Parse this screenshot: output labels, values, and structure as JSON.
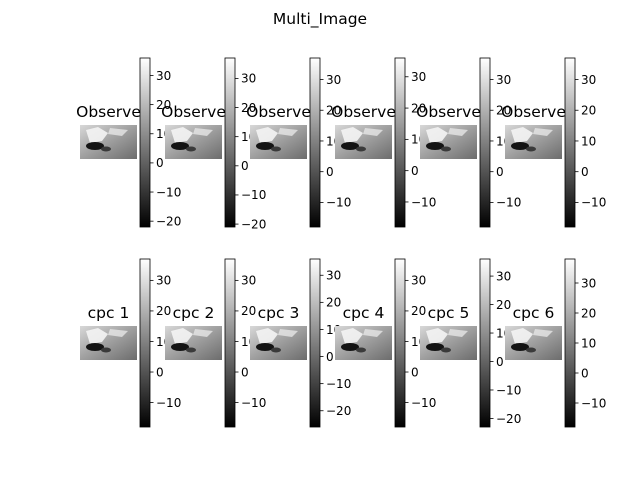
{
  "figure": {
    "title": "Multi_Image"
  },
  "chart_data": {
    "type": "heatmap",
    "colormap": "gray",
    "rows": [
      {
        "panels": [
          {
            "title": "Observe",
            "colorbar": {
              "ticks": [
                -20,
                -10,
                0,
                10,
                20,
                30
              ],
              "vmin": -22,
              "vmax": 36
            }
          },
          {
            "title": "Observe",
            "colorbar": {
              "ticks": [
                -20,
                -10,
                0,
                10,
                20,
                30
              ],
              "vmin": -21,
              "vmax": 37
            }
          },
          {
            "title": "Observe",
            "colorbar": {
              "ticks": [
                -10,
                0,
                10,
                20,
                30
              ],
              "vmin": -18,
              "vmax": 37
            }
          },
          {
            "title": "Observe",
            "colorbar": {
              "ticks": [
                -10,
                0,
                10,
                20,
                30
              ],
              "vmin": -18,
              "vmax": 36
            }
          },
          {
            "title": "Observe",
            "colorbar": {
              "ticks": [
                -10,
                0,
                10,
                20,
                30
              ],
              "vmin": -18,
              "vmax": 37
            }
          },
          {
            "title": "Observe",
            "colorbar": {
              "ticks": [
                -10,
                0,
                10,
                20,
                30
              ],
              "vmin": -18,
              "vmax": 37
            }
          }
        ]
      },
      {
        "panels": [
          {
            "title": "cpc 1",
            "colorbar": {
              "ticks": [
                -10,
                0,
                10,
                20,
                30
              ],
              "vmin": -18,
              "vmax": 37
            }
          },
          {
            "title": "cpc 2",
            "colorbar": {
              "ticks": [
                -10,
                0,
                10,
                20,
                30
              ],
              "vmin": -18,
              "vmax": 37
            }
          },
          {
            "title": "cpc 3",
            "colorbar": {
              "ticks": [
                -20,
                -10,
                0,
                10,
                20,
                30
              ],
              "vmin": -26,
              "vmax": 36
            }
          },
          {
            "title": "cpc 4",
            "colorbar": {
              "ticks": [
                -10,
                0,
                10,
                20,
                30
              ],
              "vmin": -18,
              "vmax": 37
            }
          },
          {
            "title": "cpc 5",
            "colorbar": {
              "ticks": [
                -20,
                -10,
                0,
                10,
                20,
                30
              ],
              "vmin": -23,
              "vmax": 36
            }
          },
          {
            "title": "cpc 6",
            "colorbar": {
              "ticks": [
                -10,
                0,
                10,
                20,
                30
              ],
              "vmin": -18,
              "vmax": 38
            }
          }
        ]
      }
    ]
  }
}
